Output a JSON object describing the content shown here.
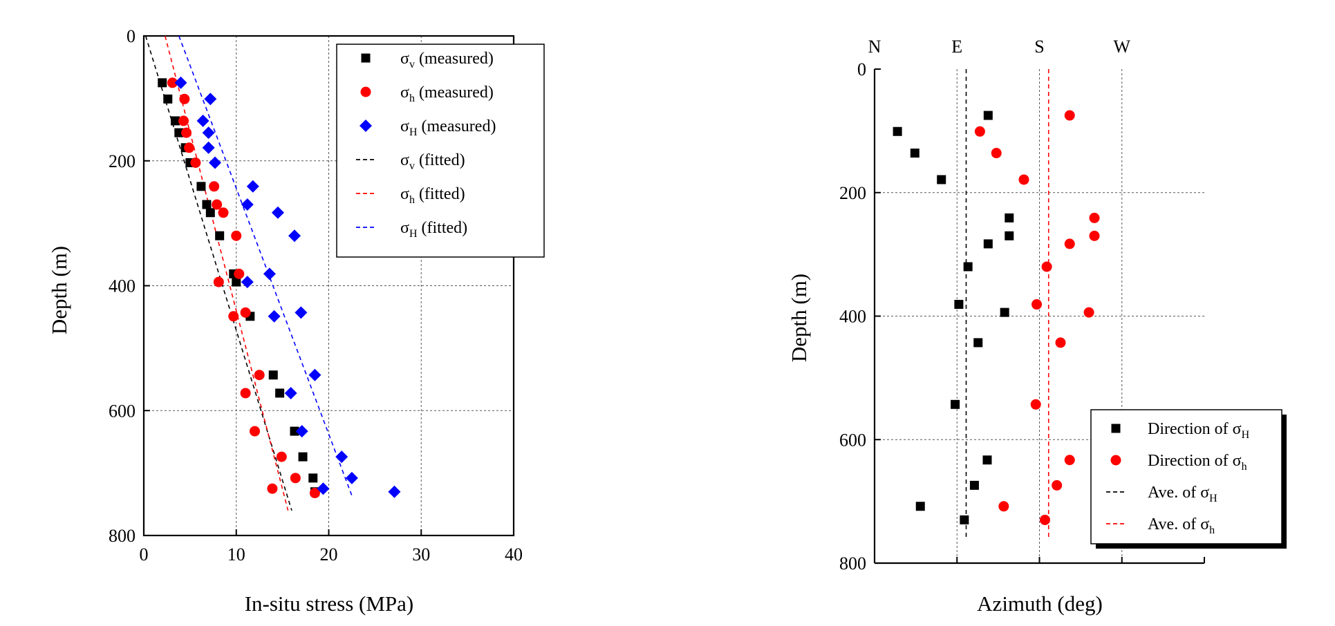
{
  "chart_data": [
    {
      "type": "scatter",
      "xlabel": "In-situ stress (MPa)",
      "ylabel": "Depth (m)",
      "xlim": [
        0,
        40
      ],
      "ylim": [
        0,
        800
      ],
      "y_inverted": true,
      "x_ticks": [
        "0",
        "10",
        "20",
        "30",
        "40"
      ],
      "y_ticks": [
        "0",
        "200",
        "400",
        "600",
        "800"
      ],
      "grid": true,
      "legend_position": "top-right",
      "series": [
        {
          "name": "σv (measured)",
          "label_main": "σ",
          "label_sub": "v",
          "label_rest": " (measured)",
          "marker": "square",
          "color": "#000000",
          "points": [
            [
              2.0,
              75
            ],
            [
              2.6,
              101
            ],
            [
              3.4,
              136
            ],
            [
              3.8,
              155
            ],
            [
              4.5,
              179
            ],
            [
              5.0,
              203
            ],
            [
              6.2,
              241
            ],
            [
              6.8,
              270
            ],
            [
              7.2,
              283
            ],
            [
              8.2,
              320
            ],
            [
              9.7,
              381
            ],
            [
              10.0,
              394
            ],
            [
              11.5,
              449
            ],
            [
              14.0,
              543
            ],
            [
              14.7,
              572
            ],
            [
              16.3,
              633
            ],
            [
              17.2,
              674
            ],
            [
              18.3,
              708
            ],
            [
              18.5,
              730
            ]
          ]
        },
        {
          "name": "σh (measured)",
          "label_main": "σ",
          "label_sub": "h",
          "label_rest": " (measured)",
          "marker": "circle",
          "color": "#ff0000",
          "points": [
            [
              3.1,
              75
            ],
            [
              4.4,
              101
            ],
            [
              4.3,
              136
            ],
            [
              4.6,
              155
            ],
            [
              4.9,
              179
            ],
            [
              5.6,
              203
            ],
            [
              7.6,
              241
            ],
            [
              7.9,
              270
            ],
            [
              8.6,
              283
            ],
            [
              10.0,
              320
            ],
            [
              10.3,
              381
            ],
            [
              8.1,
              394
            ],
            [
              11.0,
              443
            ],
            [
              9.7,
              449
            ],
            [
              12.5,
              543
            ],
            [
              11.0,
              572
            ],
            [
              12.0,
              633
            ],
            [
              14.9,
              674
            ],
            [
              16.4,
              708
            ],
            [
              13.9,
              725
            ],
            [
              18.5,
              732
            ]
          ]
        },
        {
          "name": "σH (measured)",
          "label_main": "σ",
          "label_sub": "H",
          "label_rest": " (measured)",
          "marker": "diamond",
          "color": "#0000ff",
          "points": [
            [
              4.0,
              75
            ],
            [
              7.2,
              101
            ],
            [
              6.4,
              136
            ],
            [
              7.0,
              155
            ],
            [
              7.0,
              179
            ],
            [
              7.7,
              203
            ],
            [
              11.8,
              241
            ],
            [
              11.2,
              270
            ],
            [
              14.5,
              283
            ],
            [
              16.3,
              320
            ],
            [
              13.6,
              381
            ],
            [
              11.2,
              394
            ],
            [
              17.0,
              443
            ],
            [
              14.1,
              449
            ],
            [
              18.5,
              543
            ],
            [
              15.9,
              572
            ],
            [
              17.1,
              633
            ],
            [
              21.4,
              674
            ],
            [
              22.5,
              708
            ],
            [
              19.4,
              725
            ],
            [
              27.1,
              730
            ]
          ]
        }
      ],
      "fits": [
        {
          "name": "σv (fitted)",
          "label_main": "σ",
          "label_sub": "v",
          "label_rest": " (fitted)",
          "color": "#000000",
          "x0": 0.2,
          "depth0": 0,
          "x1": 16.0,
          "depth1": 760
        },
        {
          "name": "σh (fitted)",
          "label_main": "σ",
          "label_sub": "h",
          "label_rest": " (fitted)",
          "color": "#ff0000",
          "x0": 2.3,
          "depth0": 0,
          "x1": 15.6,
          "depth1": 760
        },
        {
          "name": "σH (fitted)",
          "label_main": "σ",
          "label_sub": "H",
          "label_rest": " (fitted)",
          "color": "#0000ff",
          "x0": 3.8,
          "depth0": 0,
          "x1": 22.6,
          "depth1": 740
        }
      ]
    },
    {
      "type": "scatter",
      "xlabel": "Azimuth (deg)",
      "ylabel": "Depth (m)",
      "xlim": [
        0,
        360
      ],
      "ylim": [
        0,
        800
      ],
      "y_inverted": true,
      "x_direction_labels": [
        "N",
        "E",
        "S",
        "W"
      ],
      "x_direction_values": [
        0,
        90,
        180,
        270
      ],
      "y_ticks": [
        "0",
        "200",
        "400",
        "600",
        "800"
      ],
      "grid": true,
      "legend_position": "bottom-right",
      "series": [
        {
          "name": "Direction of σH",
          "label_main": "Direction of σ",
          "label_sub": "H",
          "marker": "square",
          "color": "#000000",
          "points": [
            [
              124,
              75
            ],
            [
              25,
              101
            ],
            [
              44,
              136
            ],
            [
              73,
              179
            ],
            [
              147,
              241
            ],
            [
              147,
              270
            ],
            [
              124,
              283
            ],
            [
              102,
              320
            ],
            [
              92,
              381
            ],
            [
              142,
              394
            ],
            [
              113,
              443
            ],
            [
              88,
              543
            ],
            [
              123,
              633
            ],
            [
              109,
              674
            ],
            [
              50,
              708
            ],
            [
              98,
              730
            ]
          ]
        },
        {
          "name": "Direction of σh",
          "label_main": "Direction of σ",
          "label_sub": "h",
          "marker": "circle",
          "color": "#ff0000",
          "points": [
            [
              213,
              75
            ],
            [
              115,
              101
            ],
            [
              133,
              136
            ],
            [
              163,
              179
            ],
            [
              240,
              241
            ],
            [
              240,
              270
            ],
            [
              213,
              283
            ],
            [
              188,
              320
            ],
            [
              177,
              381
            ],
            [
              234,
              394
            ],
            [
              203,
              443
            ],
            [
              176,
              543
            ],
            [
              213,
              633
            ],
            [
              199,
              674
            ],
            [
              141,
              708
            ],
            [
              186,
              730
            ]
          ]
        }
      ],
      "averages": [
        {
          "name": "Ave. of σH",
          "label_main": "Ave. of σ",
          "label_sub": "H",
          "color": "#000000",
          "azimuth": 100
        },
        {
          "name": "Ave. of σh",
          "label_main": "Ave. of σ",
          "label_sub": "h",
          "color": "#ff0000",
          "azimuth": 190
        }
      ]
    }
  ]
}
